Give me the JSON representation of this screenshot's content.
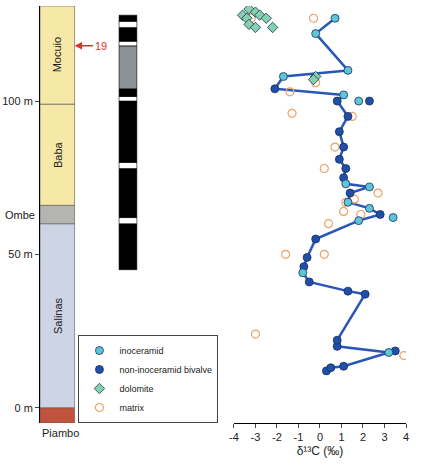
{
  "chart_data": {
    "type": "scatter",
    "xlabel": "δ¹³C (‰)",
    "xlim": [
      -4,
      4
    ],
    "xticks": [
      -4,
      -3,
      -2,
      -1,
      0,
      1,
      2,
      3,
      4
    ],
    "ylim": [
      -5,
      131
    ],
    "yticks": [
      {
        "value": 0,
        "label": "0 m"
      },
      {
        "value": 50,
        "label": "50 m"
      },
      {
        "value": 100,
        "label": "100 m"
      }
    ],
    "legend": "bottom left",
    "formations": [
      {
        "name": "Piambo",
        "base": -5,
        "top": 0,
        "color": "#c0533e"
      },
      {
        "name": "Salinas",
        "base": 0,
        "top": 60,
        "color": "#cdd4e4"
      },
      {
        "name": "Ombe",
        "base": 60,
        "top": 66,
        "color": "#b4b4b0"
      },
      {
        "name": "Baba",
        "base": 66,
        "top": 99,
        "color": "#f6e8a6"
      },
      {
        "name": "Mocuio",
        "base": 99,
        "top": 131,
        "color": "#f6e8a6"
      }
    ],
    "polarity": [
      {
        "base": 45,
        "top": 60,
        "color": "#000000"
      },
      {
        "base": 60,
        "top": 62,
        "color": "#ffffff"
      },
      {
        "base": 62,
        "top": 78,
        "color": "#000000"
      },
      {
        "base": 78,
        "top": 80,
        "color": "#ffffff"
      },
      {
        "base": 80,
        "top": 100,
        "color": "#000000"
      },
      {
        "base": 100,
        "top": 101.5,
        "color": "#ffffff"
      },
      {
        "base": 101.5,
        "top": 104,
        "color": "#000000"
      },
      {
        "base": 104,
        "top": 118,
        "color": "#8c9296"
      },
      {
        "base": 118,
        "top": 119.5,
        "color": "#ffffff"
      },
      {
        "base": 119.5,
        "top": 124,
        "color": "#000000"
      },
      {
        "base": 124,
        "top": 126,
        "color": "#ffffff"
      },
      {
        "base": 126,
        "top": 128,
        "color": "#000000"
      }
    ],
    "sample": {
      "label": "19",
      "y": 118,
      "color": "#e0302a"
    },
    "series": [
      {
        "type": "line",
        "color": "#2a56b8",
        "line_style": "solid",
        "x": [
          0.3,
          0.5,
          1.1,
          3.2,
          0.8,
          0.8,
          2.1,
          1.3,
          -0.5,
          -0.8,
          -0.75,
          -0.6,
          -0.2,
          1.8,
          2.8,
          2.3,
          1.3,
          1.4,
          2.3,
          1.2,
          1.1,
          1.2,
          0.9,
          1.1,
          0.9,
          1.3,
          0.8,
          1.1,
          -2.1,
          -1.7,
          1.3,
          -0.2,
          0.7
        ],
        "y": [
          12,
          13,
          13.5,
          18,
          20,
          22,
          37,
          38,
          41,
          44,
          46,
          49,
          55,
          61,
          63,
          65,
          67,
          70,
          72,
          73,
          75,
          78,
          81,
          85,
          90,
          95,
          100,
          102,
          104,
          108,
          110,
          122,
          127
        ]
      },
      {
        "name": "inoceramid",
        "color": "#5cc6d8",
        "marker": "circle",
        "x": [
          3.2,
          -0.8,
          1.8,
          2.3,
          1.3,
          2.3,
          1.2,
          1.1,
          -1.7,
          1.3,
          -0.2,
          0.7,
          3.4,
          1.8
        ],
        "y": [
          18,
          44,
          61,
          65,
          67,
          72,
          73,
          102,
          108,
          110,
          122,
          127,
          62,
          100
        ]
      },
      {
        "name": "non-inoceramid bivalve",
        "color": "#1f4fa8",
        "marker": "circle",
        "x": [
          0.3,
          0.5,
          1.1,
          0.8,
          0.8,
          2.1,
          1.3,
          -0.5,
          -0.75,
          -0.6,
          -0.2,
          2.8,
          1.4,
          1.1,
          1.2,
          0.9,
          1.1,
          0.9,
          1.3,
          0.8,
          -2.1,
          3.5,
          2.3
        ],
        "y": [
          12,
          13,
          13.5,
          20,
          22,
          37,
          38,
          41,
          46,
          49,
          55,
          63,
          70,
          75,
          78,
          81,
          85,
          90,
          95,
          100,
          104,
          18.5,
          100
        ]
      },
      {
        "name": "dolomite",
        "color": "#86d0ab",
        "marker": "diamond",
        "x": [
          -3.6,
          -3.3,
          -3.0,
          -3.4,
          -2.8,
          -2.5,
          -2.2,
          -3.3,
          -3.0,
          -0.2,
          -0.3
        ],
        "y": [
          128,
          130,
          129,
          127,
          128,
          127,
          124,
          125,
          124,
          108,
          107
        ]
      },
      {
        "name": "matrix",
        "color": "#f0a060",
        "marker": "circle-open",
        "x": [
          -3.2,
          -0.3,
          -0.2,
          -1.4,
          -1.3,
          1.5,
          0.7,
          0.2,
          2.7,
          1.1,
          1.9,
          0.4,
          -1.6,
          0.2,
          -3.0,
          3.9,
          1.6,
          1.2
        ],
        "y": [
          127,
          127,
          106,
          103,
          96,
          95,
          85,
          78,
          70,
          64,
          63,
          60,
          50,
          50,
          24,
          17,
          68,
          67
        ]
      }
    ]
  }
}
